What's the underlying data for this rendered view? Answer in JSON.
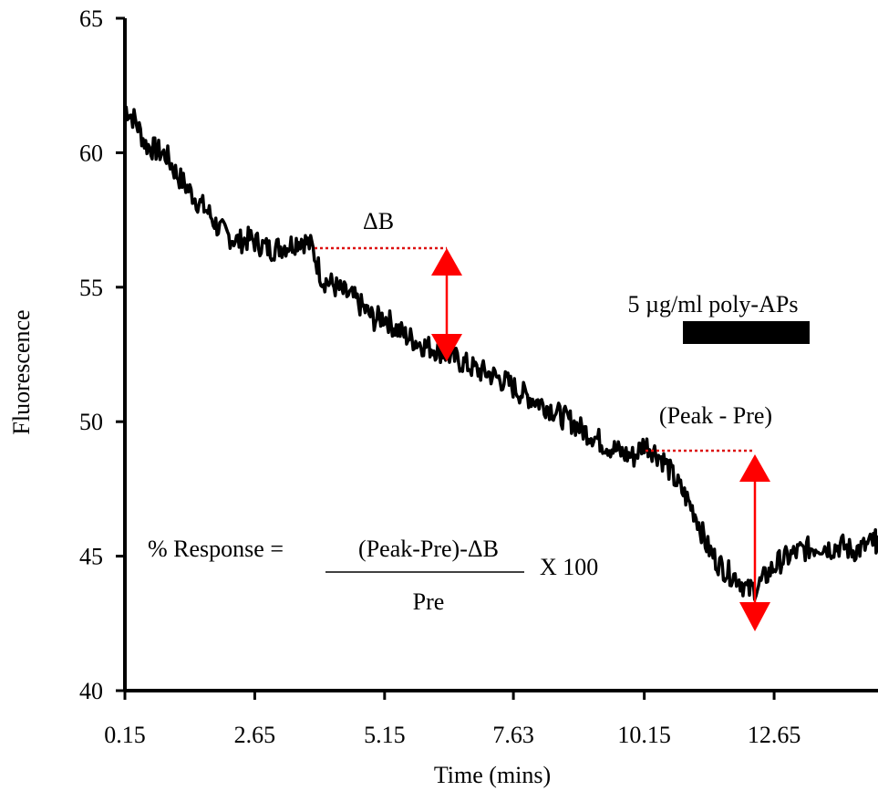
{
  "chart_data": {
    "type": "line",
    "xlabel": "Time (mins)",
    "ylabel": "Fluorescence",
    "xlim": [
      0.15,
      14.65
    ],
    "ylim": [
      40,
      65
    ],
    "x_ticks": [
      "0.15",
      "2.65",
      "5.15",
      "7.63",
      "10.15",
      "12.65"
    ],
    "x_tick_values": [
      0.15,
      2.65,
      5.15,
      7.63,
      10.15,
      12.65
    ],
    "y_ticks": [
      40,
      45,
      50,
      55,
      60,
      65
    ],
    "grid": false,
    "series": [
      {
        "color": "#000000",
        "x": [
          0.15,
          0.35,
          0.55,
          0.75,
          0.95,
          1.15,
          1.35,
          1.55,
          1.75,
          1.95,
          2.15,
          2.35,
          2.55,
          2.75,
          2.95,
          3.15,
          3.35,
          3.55,
          3.75,
          3.95,
          4.15,
          4.35,
          4.55,
          4.75,
          4.95,
          5.15,
          5.35,
          5.55,
          5.75,
          5.95,
          6.15,
          6.35,
          6.55,
          6.75,
          6.95,
          7.15,
          7.35,
          7.55,
          7.75,
          7.95,
          8.15,
          8.35,
          8.55,
          8.75,
          8.95,
          9.15,
          9.35,
          9.55,
          9.75,
          9.95,
          10.15,
          10.35,
          10.55,
          10.75,
          10.95,
          11.15,
          11.35,
          11.55,
          11.75,
          11.95,
          12.15,
          12.35,
          12.55,
          12.75,
          12.95,
          13.15,
          13.35,
          13.55,
          13.75,
          13.95,
          14.15,
          14.35,
          14.55,
          14.65
        ],
        "y": [
          61.7,
          61.2,
          60.3,
          60.1,
          59.9,
          59.2,
          58.7,
          58.2,
          57.8,
          57.2,
          56.9,
          56.7,
          56.8,
          56.6,
          56.4,
          56.5,
          56.6,
          56.8,
          56.5,
          55.3,
          55.1,
          54.8,
          54.6,
          54.2,
          53.8,
          53.9,
          53.5,
          53.2,
          53.0,
          52.8,
          52.7,
          52.5,
          52.3,
          52.1,
          51.9,
          51.8,
          51.6,
          51.4,
          51.1,
          50.9,
          50.7,
          50.5,
          50.2,
          50.0,
          49.7,
          49.5,
          49.2,
          49.0,
          48.8,
          48.7,
          49.2,
          48.9,
          48.5,
          47.8,
          47.2,
          46.5,
          45.4,
          44.8,
          44.4,
          44.2,
          43.7,
          43.9,
          44.4,
          44.8,
          45.0,
          45.2,
          45.3,
          45.4,
          45.3,
          45.4,
          45.2,
          45.3,
          45.5,
          45.6
        ]
      }
    ],
    "annotations": {
      "delta_b_label": "ΔB",
      "stimulus_label": "5 µg/ml poly-APs",
      "peak_pre_label": "(Peak - Pre)",
      "formula_lhs": "% Response =",
      "formula_numerator": "(Peak-Pre)-ΔB",
      "formula_denominator": "Pre",
      "formula_multiplier": "X 100",
      "arrow_color": "#ff0000",
      "dotted_line_color": "#dd1111",
      "stimulus_bar_color": "#000000"
    }
  }
}
